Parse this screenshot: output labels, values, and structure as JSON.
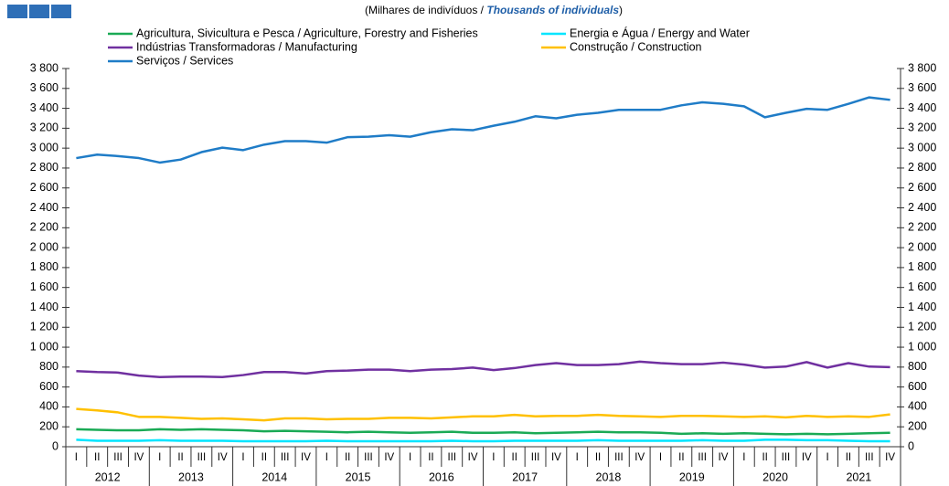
{
  "chart_data": {
    "type": "line",
    "subtitle_parts": [
      "(Milhares de indivíduos / ",
      "Thousands of individuals",
      ")"
    ],
    "categories": [
      "I",
      "II",
      "III",
      "IV",
      "I",
      "II",
      "III",
      "IV",
      "I",
      "II",
      "III",
      "IV",
      "I",
      "II",
      "III",
      "IV",
      "I",
      "II",
      "III",
      "IV",
      "I",
      "II",
      "III",
      "IV",
      "I",
      "II",
      "III",
      "IV",
      "I",
      "II",
      "III",
      "IV",
      "I",
      "II",
      "III",
      "IV",
      "I",
      "II",
      "III",
      "IV"
    ],
    "years": [
      "2012",
      "2013",
      "2014",
      "2015",
      "2016",
      "2017",
      "2018",
      "2019",
      "2020",
      "2021"
    ],
    "ylim": [
      0,
      3800
    ],
    "yticks": [
      0,
      200,
      400,
      600,
      800,
      {
        "value": 1000,
        "label": "1 000"
      },
      {
        "value": 1200,
        "label": "1 200"
      },
      {
        "value": 1400,
        "label": "1 400"
      },
      {
        "value": 1600,
        "label": "1 600"
      },
      {
        "value": 1800,
        "label": "1 800"
      },
      {
        "value": 2000,
        "label": "2 000"
      },
      {
        "value": 2200,
        "label": "2 200"
      },
      {
        "value": 2400,
        "label": "2 400"
      },
      {
        "value": 2600,
        "label": "2 600"
      },
      {
        "value": 2800,
        "label": "2 800"
      },
      {
        "value": 3000,
        "label": "3 000"
      },
      {
        "value": 3200,
        "label": "3 200"
      },
      {
        "value": 3400,
        "label": "3 400"
      },
      {
        "value": 3600,
        "label": "3 600"
      },
      {
        "value": 3800,
        "label": "3 800"
      }
    ],
    "series": [
      {
        "name": "Agricultura, Sivicultura e Pesca / Agriculture, Forestry and Fisheries",
        "color": "#1aaa55",
        "values": [
          175,
          170,
          165,
          165,
          175,
          170,
          175,
          170,
          165,
          155,
          160,
          155,
          150,
          145,
          150,
          145,
          140,
          145,
          150,
          140,
          140,
          145,
          135,
          140,
          145,
          150,
          145,
          145,
          140,
          130,
          135,
          130,
          135,
          130,
          125,
          130,
          125,
          130,
          135,
          140
        ]
      },
      {
        "name": "Energia e Água / Energy and Water",
        "color": "#00e5ff",
        "values": [
          70,
          60,
          60,
          60,
          65,
          60,
          60,
          60,
          55,
          55,
          55,
          55,
          60,
          55,
          55,
          55,
          55,
          55,
          60,
          55,
          55,
          60,
          60,
          60,
          60,
          65,
          60,
          60,
          60,
          60,
          65,
          60,
          60,
          70,
          70,
          65,
          65,
          60,
          55,
          55
        ]
      },
      {
        "name": "Indústrias Transformadoras / Manufacturing",
        "color": "#7030a0",
        "values": [
          760,
          750,
          745,
          715,
          700,
          705,
          705,
          700,
          720,
          750,
          750,
          735,
          760,
          765,
          775,
          775,
          760,
          775,
          780,
          795,
          770,
          790,
          820,
          840,
          820,
          820,
          830,
          855,
          840,
          830,
          830,
          845,
          825,
          795,
          805,
          850,
          795,
          840,
          805,
          800
        ]
      },
      {
        "name": "Construção / Construction",
        "color": "#ffc000",
        "values": [
          380,
          365,
          345,
          300,
          300,
          290,
          280,
          285,
          275,
          265,
          285,
          285,
          275,
          280,
          280,
          290,
          290,
          285,
          295,
          305,
          305,
          320,
          305,
          310,
          310,
          320,
          310,
          305,
          300,
          310,
          310,
          305,
          300,
          305,
          295,
          310,
          300,
          305,
          300,
          325
        ]
      },
      {
        "name": "Serviços / Services",
        "color": "#1f7cc7",
        "values": [
          2900,
          2935,
          2920,
          2900,
          2855,
          2885,
          2960,
          3005,
          2980,
          3035,
          3070,
          3070,
          3055,
          3110,
          3115,
          3130,
          3115,
          3160,
          3190,
          3180,
          3225,
          3265,
          3320,
          3300,
          3335,
          3355,
          3385,
          3385,
          3385,
          3430,
          3460,
          3445,
          3420,
          3310,
          3355,
          3395,
          3385,
          3445,
          3510,
          3485
        ]
      }
    ]
  }
}
